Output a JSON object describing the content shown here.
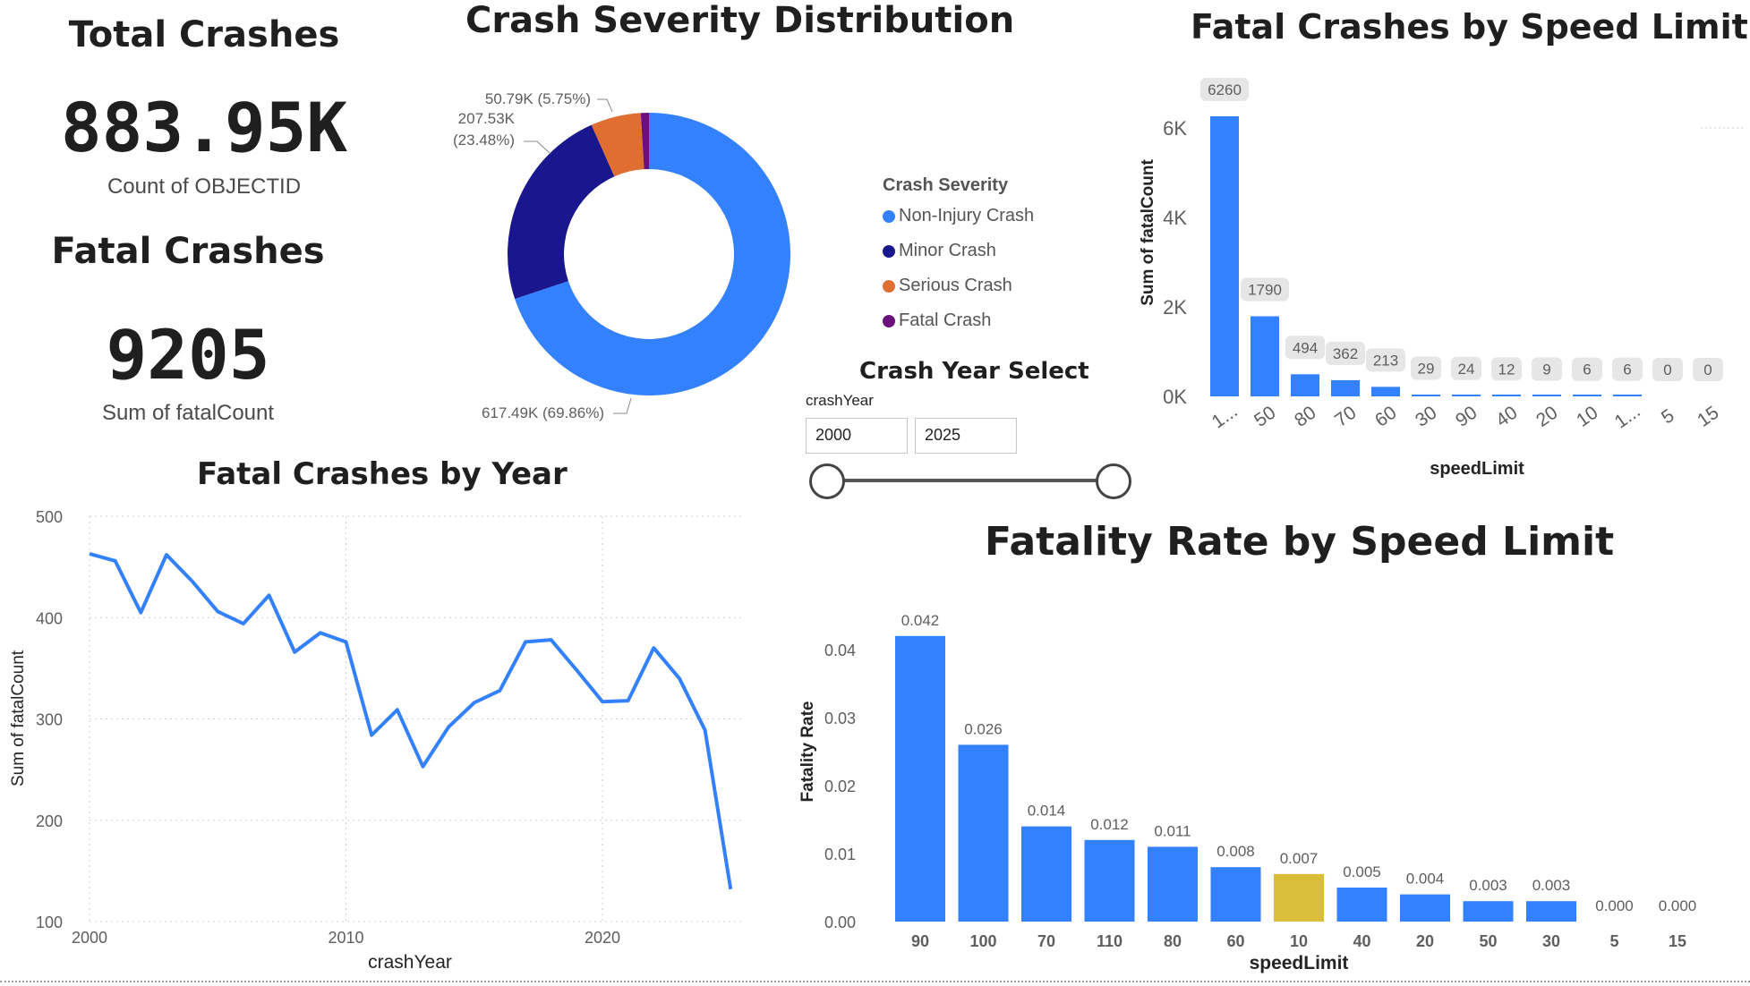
{
  "kpis": {
    "total": {
      "title": "Total Crashes",
      "value": "883.95K",
      "label": "Count of OBJECTID"
    },
    "fatal": {
      "title": "Fatal Crashes",
      "value": "9205",
      "label": "Sum of fatalCount"
    }
  },
  "slicer": {
    "title": "Crash Year Select",
    "field": "crashYear",
    "start": "2000",
    "end": "2025"
  },
  "colors": {
    "blue": "#3381ff",
    "navy": "#1a178e",
    "orange": "#e06d32",
    "purple": "#6b0f7a",
    "gold": "#d9bd3b"
  },
  "chart_data": [
    {
      "id": "severity",
      "type": "pie",
      "title": "Crash Severity Distribution",
      "legend_title": "Crash Severity",
      "legend_position": "right",
      "slices": [
        {
          "label": "Non-Injury Crash",
          "value": 617.49,
          "data_label": "617.49K (69.86%)",
          "color": "#3381ff"
        },
        {
          "label": "Minor Crash",
          "value": 207.53,
          "data_label": "207.53K (23.48%)",
          "color": "#1a178e"
        },
        {
          "label": "Serious Crash",
          "value": 50.79,
          "data_label": "50.79K (5.75%)",
          "color": "#e06d32"
        },
        {
          "label": "Fatal Crash",
          "value": 8.14,
          "data_label": "",
          "color": "#6b0f7a"
        }
      ]
    },
    {
      "id": "fatal_by_speed",
      "type": "bar",
      "title": "Fatal Crashes by Speed Limit",
      "xlabel": "speedLimit",
      "ylabel": "Sum of fatalCount",
      "ylim": [
        0,
        6600
      ],
      "yticks": [
        0,
        2000,
        4000,
        6000
      ],
      "ytick_labels": [
        "0K",
        "2K",
        "4K",
        "6K"
      ],
      "categories": [
        "1...",
        "50",
        "80",
        "70",
        "60",
        "30",
        "90",
        "40",
        "20",
        "10",
        "1...",
        "5",
        "15"
      ],
      "values": [
        6260,
        1790,
        494,
        362,
        213,
        29,
        24,
        12,
        9,
        6,
        6,
        0,
        0
      ],
      "color": "#3381ff"
    },
    {
      "id": "fatal_by_year",
      "type": "line",
      "title": "Fatal Crashes by Year",
      "xlabel": "crashYear",
      "ylabel": "Sum of fatalCount",
      "ylim": [
        100,
        500
      ],
      "xlim": [
        2000,
        2025
      ],
      "yticks": [
        100,
        200,
        300,
        400,
        500
      ],
      "xticks": [
        2000,
        2010,
        2020
      ],
      "x": [
        2000,
        2001,
        2002,
        2003,
        2004,
        2005,
        2006,
        2007,
        2008,
        2009,
        2010,
        2011,
        2012,
        2013,
        2014,
        2015,
        2016,
        2017,
        2018,
        2019,
        2020,
        2021,
        2022,
        2023,
        2024,
        2025
      ],
      "values": [
        463,
        456,
        405,
        462,
        436,
        406,
        394,
        422,
        366,
        385,
        376,
        284,
        309,
        253,
        292,
        316,
        328,
        376,
        378,
        348,
        317,
        318,
        370,
        340,
        289,
        132
      ],
      "grid": true,
      "color": "#3381ff"
    },
    {
      "id": "rate_by_speed",
      "type": "bar",
      "title": "Fatality Rate by Speed Limit",
      "xlabel": "speedLimit",
      "ylabel": "Fatality Rate",
      "ylim": [
        0,
        0.045
      ],
      "yticks": [
        0,
        0.01,
        0.02,
        0.03,
        0.04
      ],
      "ytick_labels": [
        "0.00",
        "0.01",
        "0.02",
        "0.03",
        "0.04"
      ],
      "categories": [
        "90",
        "100",
        "70",
        "110",
        "80",
        "60",
        "10",
        "40",
        "20",
        "50",
        "30",
        "5",
        "15"
      ],
      "values": [
        0.042,
        0.026,
        0.014,
        0.012,
        0.011,
        0.008,
        0.007,
        0.005,
        0.004,
        0.003,
        0.003,
        0.0,
        0.0
      ],
      "data_labels": [
        "0.042",
        "0.026",
        "0.014",
        "0.012",
        "0.011",
        "0.008",
        "0.007",
        "0.005",
        "0.004",
        "0.003",
        "0.003",
        "0.000",
        "0.000"
      ],
      "highlight_category": "10",
      "color": "#3381ff",
      "highlight_color": "#d9bd3b"
    }
  ]
}
